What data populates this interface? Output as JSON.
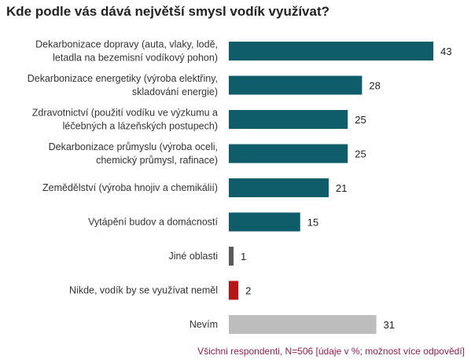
{
  "title": "Kde podle vás dává největší smysl vodík využívat?",
  "footnote": "Všichni respondenti, N=506 [údaje v %; možnost více odpovědí]",
  "chart_data": {
    "type": "bar",
    "orientation": "horizontal",
    "title": "Kde podle vás dává největší smysl vodík využívat?",
    "xlim": [
      0,
      45
    ],
    "grid": false,
    "categories": [
      [
        "Dekarbonizace dopravy (auta, vlaky, lodě,",
        "letadla na bezemisní vodíkový pohon)"
      ],
      [
        "Dekarbonizace energetiky (výroba elektřiny,",
        "skladování energie)"
      ],
      [
        "Zdravotnictví (použití vodíku ve výzkumu a",
        "léčebných a lázeňských postupech)"
      ],
      [
        "Dekarbonizace průmyslu (výroba oceli,",
        "chemický průmysl, rafinace)"
      ],
      [
        "Zemědělství (výroba hnojiv a chemikálií)"
      ],
      [
        "Vytápění budov a domácností"
      ],
      [
        "Jiné oblasti"
      ],
      [
        "Nikde, vodík by se využívat neměl"
      ],
      [
        "Nevím"
      ]
    ],
    "values": [
      43,
      28,
      25,
      25,
      21,
      15,
      1,
      2,
      31
    ],
    "colors": [
      "#0f5c6b",
      "#0f5c6b",
      "#0f5c6b",
      "#0f5c6b",
      "#0f5c6b",
      "#0f5c6b",
      "#5a5a5a",
      "#b81414",
      "#bdbdbd"
    ]
  }
}
